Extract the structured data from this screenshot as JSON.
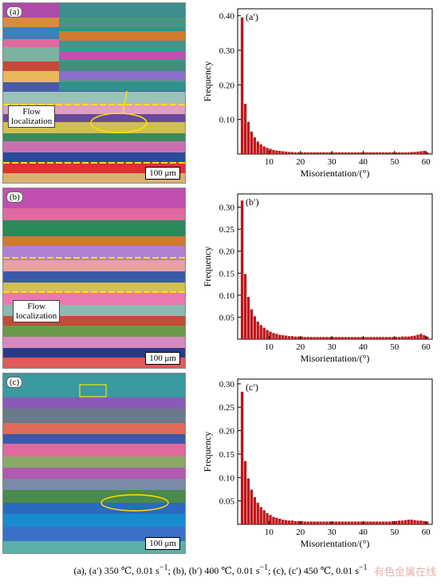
{
  "panels": [
    {
      "label": "(a)",
      "scale": "100 μm",
      "flow_text": [
        "Flow",
        "localization"
      ]
    },
    {
      "label": "(b)",
      "scale": "100 μm",
      "flow_text": [
        "Flow",
        "localization"
      ]
    },
    {
      "label": "(c)",
      "scale": "100 μm",
      "flow_text": []
    }
  ],
  "chart_data": [
    {
      "type": "bar",
      "label": "(a′)",
      "xlabel": "Misorientation/(°)",
      "ylabel": "Frequency",
      "xlim": [
        0,
        62
      ],
      "ylim": [
        0,
        0.42
      ],
      "xticks": [
        10,
        20,
        30,
        40,
        50,
        60
      ],
      "yticks": [
        "0.10",
        "0.20",
        "0.30",
        "0.40"
      ],
      "color": "#c0161a",
      "values": [
        0.395,
        0.145,
        0.093,
        0.065,
        0.048,
        0.036,
        0.028,
        0.022,
        0.018,
        0.015,
        0.012,
        0.01,
        0.009,
        0.008,
        0.007,
        0.006,
        0.006,
        0.005,
        0.005,
        0.005,
        0.005,
        0.005,
        0.005,
        0.005,
        0.005,
        0.005,
        0.005,
        0.005,
        0.005,
        0.005,
        0.005,
        0.005,
        0.005,
        0.005,
        0.005,
        0.005,
        0.005,
        0.005,
        0.005,
        0.005,
        0.005,
        0.005,
        0.005,
        0.005,
        0.005,
        0.005,
        0.005,
        0.005,
        0.005,
        0.005,
        0.005,
        0.005,
        0.005,
        0.005,
        0.006,
        0.006,
        0.007,
        0.008,
        0.009,
        0.005
      ]
    },
    {
      "type": "bar",
      "label": "(b′)",
      "xlabel": "Misorientation/(°)",
      "ylabel": "Frequency",
      "xlim": [
        0,
        62
      ],
      "ylim": [
        0,
        0.33
      ],
      "xticks": [
        10,
        20,
        30,
        40,
        50,
        60
      ],
      "yticks": [
        "0.05",
        "0.10",
        "0.15",
        "0.20",
        "0.25",
        "0.30"
      ],
      "color": "#c0161a",
      "values": [
        0.315,
        0.148,
        0.096,
        0.068,
        0.052,
        0.04,
        0.032,
        0.026,
        0.021,
        0.017,
        0.014,
        0.012,
        0.01,
        0.009,
        0.008,
        0.007,
        0.007,
        0.006,
        0.006,
        0.006,
        0.005,
        0.005,
        0.005,
        0.005,
        0.005,
        0.005,
        0.005,
        0.005,
        0.005,
        0.005,
        0.005,
        0.005,
        0.005,
        0.005,
        0.005,
        0.005,
        0.005,
        0.005,
        0.005,
        0.005,
        0.005,
        0.005,
        0.005,
        0.005,
        0.005,
        0.005,
        0.005,
        0.005,
        0.005,
        0.005,
        0.005,
        0.006,
        0.006,
        0.006,
        0.007,
        0.008,
        0.01,
        0.012,
        0.009,
        0.006
      ]
    },
    {
      "type": "bar",
      "label": "(c′)",
      "xlabel": "Misorientation/(°)",
      "ylabel": "Frequency",
      "xlim": [
        0,
        62
      ],
      "ylim": [
        0,
        0.31
      ],
      "xticks": [
        10,
        20,
        30,
        40,
        50,
        60
      ],
      "yticks": [
        "0.05",
        "0.10",
        "0.15",
        "0.20",
        "0.25",
        "0.30"
      ],
      "color": "#c0161a",
      "values": [
        0.283,
        0.135,
        0.098,
        0.074,
        0.058,
        0.046,
        0.037,
        0.03,
        0.024,
        0.02,
        0.016,
        0.014,
        0.012,
        0.01,
        0.009,
        0.008,
        0.008,
        0.007,
        0.007,
        0.007,
        0.006,
        0.006,
        0.006,
        0.006,
        0.006,
        0.006,
        0.006,
        0.006,
        0.006,
        0.006,
        0.006,
        0.006,
        0.006,
        0.006,
        0.006,
        0.006,
        0.006,
        0.006,
        0.006,
        0.006,
        0.006,
        0.006,
        0.006,
        0.006,
        0.006,
        0.006,
        0.006,
        0.006,
        0.007,
        0.007,
        0.008,
        0.008,
        0.009,
        0.01,
        0.01,
        0.009,
        0.008,
        0.008,
        0.007,
        0.006
      ]
    }
  ],
  "caption": {
    "a": "(a), (a′) 350 ℃, 0.01 s",
    "sup1": "−1",
    "b": "; (b), (b′) 400 ℃, 0.01 s",
    "sup2": "−1",
    "c": "; (c), (c′) 450 ℃, 0.01 s",
    "sup3": "−1"
  },
  "watermark": "有色金属在线"
}
